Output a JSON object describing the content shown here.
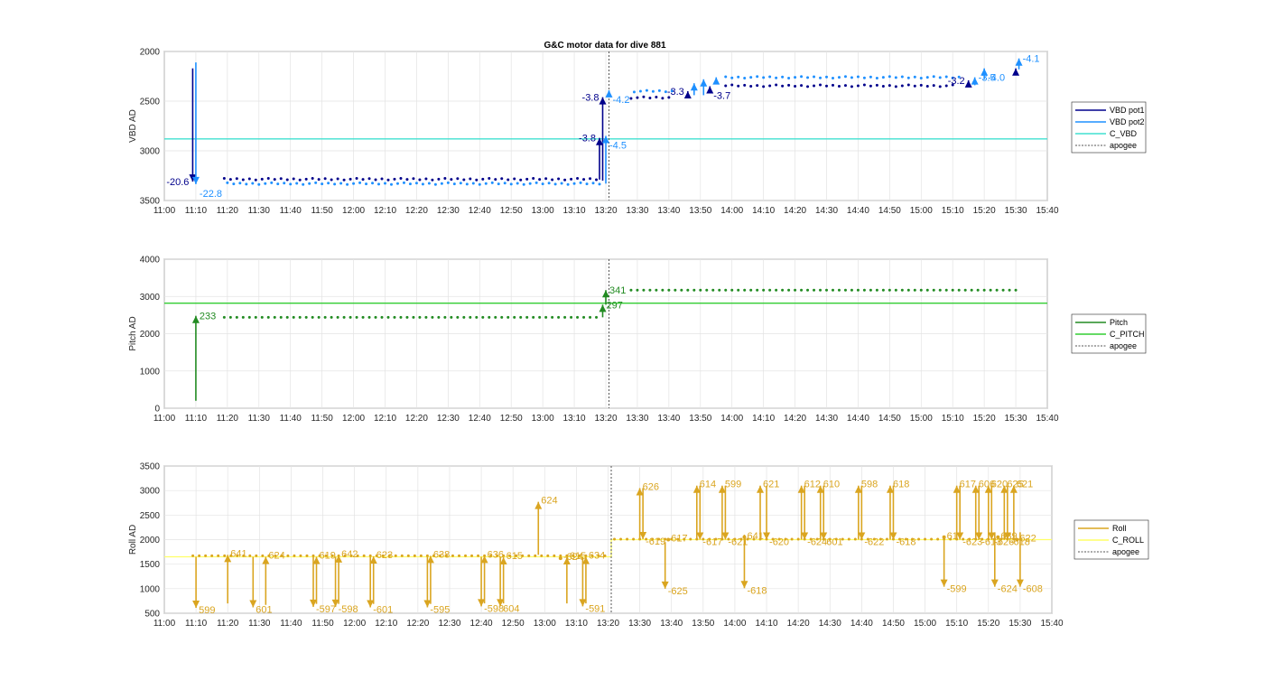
{
  "title": "G&C motor data for dive 881",
  "chart_data": [
    {
      "type": "scatter",
      "ylabel": "VBD AD",
      "xlim": [
        "11:00",
        "15:40"
      ],
      "ylim": [
        2000,
        3500
      ],
      "y_reversed": true,
      "xticks": [
        "11:00",
        "11:10",
        "11:20",
        "11:30",
        "11:40",
        "11:50",
        "12:00",
        "12:10",
        "12:20",
        "12:30",
        "12:40",
        "12:50",
        "13:00",
        "13:10",
        "13:20",
        "13:30",
        "13:40",
        "13:50",
        "14:00",
        "14:10",
        "14:20",
        "14:30",
        "14:40",
        "14:50",
        "15:00",
        "15:10",
        "15:20",
        "15:30",
        "15:40"
      ],
      "yticks": [
        "2000",
        "2500",
        "3000",
        "3500"
      ],
      "grid": true,
      "legend": {
        "placement": "right",
        "entries": [
          "VBD pot1",
          "VBD pot2",
          "C_VBD",
          "apogee"
        ]
      },
      "colors": {
        "pot1": "#00008b",
        "pot2": "#1e90ff",
        "c_line": "#40e0d0",
        "apogee": "#555555"
      },
      "c_value": 2880,
      "apogee": "13:21",
      "pot1_steady": [
        {
          "x0": "11:19",
          "x1": "13:18",
          "y": 3285
        },
        {
          "x0": "13:28",
          "x1": "13:40",
          "y": 2465
        },
        {
          "x0": "13:58",
          "x1": "15:10",
          "y": 2345
        }
      ],
      "pot2_steady": [
        {
          "x0": "11:19",
          "x1": "13:18",
          "y": 3330
        },
        {
          "x0": "13:28",
          "x1": "13:40",
          "y": 2400
        },
        {
          "x0": "13:57",
          "x1": "15:11",
          "y": 2260
        }
      ],
      "moves": [
        {
          "x": "11:09",
          "y0": 2170,
          "y1": 3310,
          "color": "#00008b",
          "label": "-20.6",
          "label_side": "left"
        },
        {
          "x": "11:10",
          "y0": 2110,
          "y1": 3335,
          "color": "#1e90ff",
          "label": "-22.8",
          "label_side": "right-below"
        },
        {
          "x": "13:18",
          "y0": 3290,
          "y1": 2870,
          "color": "#00008b",
          "label": "-3.8",
          "label_side": "left"
        },
        {
          "x": "13:19",
          "y0": 3300,
          "y1": 2460,
          "color": "#00008b",
          "label": "-3.8",
          "label_side": "left"
        },
        {
          "x": "13:20",
          "y0": 3330,
          "y1": 2850,
          "color": "#1e90ff",
          "label": "-4.5",
          "label_side": "right-below"
        },
        {
          "x": "13:21",
          "y0": 2460,
          "y1": 2390,
          "color": "#1e90ff",
          "label": "-4.2",
          "label_side": "right-below"
        },
        {
          "x": "13:46",
          "y0": 2440,
          "y1": 2400,
          "color": "#00008b",
          "label": "-3.3",
          "label_side": "left"
        },
        {
          "x": "13:48",
          "y0": 2440,
          "y1": 2320,
          "color": "#1e90ff",
          "label": "",
          "label_side": "none"
        },
        {
          "x": "13:51",
          "y0": 2440,
          "y1": 2280,
          "color": "#1e90ff",
          "label": "",
          "label_side": "none"
        },
        {
          "x": "13:53",
          "y0": 2380,
          "y1": 2350,
          "color": "#00008b",
          "label": "-3.7",
          "label_side": "right-below"
        },
        {
          "x": "13:55",
          "y0": 2330,
          "y1": 2260,
          "color": "#1e90ff",
          "label": "",
          "label_side": "none"
        },
        {
          "x": "15:15",
          "y0": 2350,
          "y1": 2290,
          "color": "#00008b",
          "label": "-3.2",
          "label_side": "left"
        },
        {
          "x": "15:17",
          "y0": 2340,
          "y1": 2260,
          "color": "#1e90ff",
          "label": "-3.5",
          "label_side": "right"
        },
        {
          "x": "15:20",
          "y0": 2280,
          "y1": 2170,
          "color": "#1e90ff",
          "label": "-4.0",
          "label_side": "right-below"
        },
        {
          "x": "15:30",
          "y0": 2230,
          "y1": 2170,
          "color": "#00008b",
          "label": "",
          "label_side": "none"
        },
        {
          "x": "15:31",
          "y0": 2180,
          "y1": 2070,
          "color": "#1e90ff",
          "label": "-4.1",
          "label_side": "right"
        }
      ]
    },
    {
      "type": "scatter",
      "ylabel": "Pitch AD",
      "xlim": [
        "11:00",
        "15:40"
      ],
      "ylim": [
        0,
        4000
      ],
      "xticks": [
        "11:00",
        "11:10",
        "11:20",
        "11:30",
        "11:40",
        "11:50",
        "12:00",
        "12:10",
        "12:20",
        "12:30",
        "12:40",
        "12:50",
        "13:00",
        "13:10",
        "13:20",
        "13:30",
        "13:40",
        "13:50",
        "14:00",
        "14:10",
        "14:20",
        "14:30",
        "14:40",
        "14:50",
        "15:00",
        "15:10",
        "15:20",
        "15:30",
        "15:40"
      ],
      "yticks": [
        "0",
        "1000",
        "2000",
        "3000",
        "4000"
      ],
      "grid": true,
      "legend": {
        "placement": "right",
        "entries": [
          "Pitch",
          "C_PITCH",
          "apogee"
        ]
      },
      "colors": {
        "pitch": "#228b22",
        "c_line": "#32cd32",
        "apogee": "#555555"
      },
      "c_value": 2820,
      "apogee": "13:21",
      "steady": [
        {
          "x0": "11:19",
          "x1": "13:18",
          "y": 2440
        },
        {
          "x0": "13:28",
          "x1": "15:31",
          "y": 3170
        }
      ],
      "moves": [
        {
          "x": "11:10",
          "y0": 200,
          "y1": 2480,
          "label": "233"
        },
        {
          "x": "13:19",
          "y0": 2440,
          "y1": 2780,
          "label": "297"
        },
        {
          "x": "13:20",
          "y0": 2780,
          "y1": 3170,
          "label": "341"
        }
      ]
    },
    {
      "type": "scatter",
      "ylabel": "Roll AD",
      "xlim": [
        "11:00",
        "15:40"
      ],
      "ylim": [
        500,
        3500
      ],
      "xticks": [
        "11:00",
        "11:10",
        "11:20",
        "11:30",
        "11:40",
        "11:50",
        "12:00",
        "12:10",
        "12:20",
        "12:30",
        "12:40",
        "12:50",
        "13:00",
        "13:10",
        "13:20",
        "13:30",
        "13:40",
        "13:50",
        "14:00",
        "14:10",
        "14:20",
        "14:30",
        "14:40",
        "14:50",
        "15:00",
        "15:10",
        "15:20",
        "15:30",
        "15:40"
      ],
      "yticks": [
        "500",
        "1000",
        "1500",
        "2000",
        "2500",
        "3000",
        "3500"
      ],
      "grid": true,
      "legend": {
        "placement": "right",
        "entries": [
          "Roll",
          "C_ROLL",
          "apogee"
        ]
      },
      "colors": {
        "roll": "#daa520",
        "c_line": "#ffff66",
        "apogee": "#555555"
      },
      "c_value_before": 1650,
      "c_value_after": 2000,
      "c_change": "13:21",
      "apogee": "13:21",
      "steady": [
        {
          "x0": "11:09",
          "x1": "13:20",
          "y": 1670
        },
        {
          "x0": "13:22",
          "x1": "15:31",
          "y": 2010
        }
      ],
      "moves": [
        {
          "x": "11:10",
          "y0": 1650,
          "y1": 610,
          "label": "599"
        },
        {
          "x": "11:28",
          "y0": 1650,
          "y1": 620,
          "label": "601"
        },
        {
          "x": "11:47",
          "y0": 1650,
          "y1": 630,
          "label": "-597"
        },
        {
          "x": "11:54",
          "y0": 1650,
          "y1": 630,
          "label": "-598"
        },
        {
          "x": "12:05",
          "y0": 1650,
          "y1": 620,
          "label": "-601"
        },
        {
          "x": "12:23",
          "y0": 1650,
          "y1": 620,
          "label": "-595"
        },
        {
          "x": "12:40",
          "y0": 1650,
          "y1": 640,
          "label": "-598"
        },
        {
          "x": "12:46",
          "y0": 1650,
          "y1": 640,
          "label": "604"
        },
        {
          "x": "13:12",
          "y0": 1650,
          "y1": 640,
          "label": "-591"
        },
        {
          "x": "13:38",
          "y0": 1950,
          "y1": 1000,
          "label": "-625"
        },
        {
          "x": "14:03",
          "y0": 2100,
          "y1": 1010,
          "label": "-618"
        },
        {
          "x": "15:06",
          "y0": 2050,
          "y1": 1040,
          "label": "-599"
        },
        {
          "x": "15:22",
          "y0": 2150,
          "y1": 1040,
          "label": "-624"
        },
        {
          "x": "15:30",
          "y0": 2150,
          "y1": 1040,
          "label": "-608"
        },
        {
          "x": "11:20",
          "y0": 700,
          "y1": 1690,
          "label": "641"
        },
        {
          "x": "11:32",
          "y0": 670,
          "y1": 1650,
          "label": "624"
        },
        {
          "x": "11:48",
          "y0": 690,
          "y1": 1650,
          "label": "619"
        },
        {
          "x": "11:55",
          "y0": 690,
          "y1": 1680,
          "label": "642"
        },
        {
          "x": "12:06",
          "y0": 690,
          "y1": 1660,
          "label": "623"
        },
        {
          "x": "12:24",
          "y0": 690,
          "y1": 1670,
          "label": "638"
        },
        {
          "x": "12:41",
          "y0": 700,
          "y1": 1670,
          "label": "636"
        },
        {
          "x": "12:47",
          "y0": 700,
          "y1": 1640,
          "label": "615"
        },
        {
          "x": "13:07",
          "y0": 700,
          "y1": 1640,
          "label": "615"
        },
        {
          "x": "13:13",
          "y0": 700,
          "y1": 1650,
          "label": "634"
        },
        {
          "x": "12:58",
          "y0": 1690,
          "y1": 2770,
          "label": "624"
        },
        {
          "x": "13:05",
          "y0": 1620,
          "y1": 1620,
          "label": "-624"
        },
        {
          "x": "13:30",
          "y0": 2000,
          "y1": 3050,
          "label": "626"
        },
        {
          "x": "13:31",
          "y0": 3050,
          "y1": 2010,
          "label": "-619"
        },
        {
          "x": "13:39",
          "y0": 2000,
          "y1": 2000,
          "label": "617"
        },
        {
          "x": "13:48",
          "y0": 2000,
          "y1": 3100,
          "label": "614"
        },
        {
          "x": "13:49",
          "y0": 3100,
          "y1": 2000,
          "label": "-617"
        },
        {
          "x": "13:56",
          "y0": 2000,
          "y1": 3100,
          "label": "599"
        },
        {
          "x": "13:57",
          "y0": 3100,
          "y1": 2000,
          "label": "-621"
        },
        {
          "x": "14:03",
          "y0": 2050,
          "y1": 2050,
          "label": "641"
        },
        {
          "x": "14:08",
          "y0": 2000,
          "y1": 3100,
          "label": "621"
        },
        {
          "x": "14:10",
          "y0": 3100,
          "y1": 2000,
          "label": "-620"
        },
        {
          "x": "14:21",
          "y0": 2000,
          "y1": 3100,
          "label": "612"
        },
        {
          "x": "14:22",
          "y0": 3100,
          "y1": 2000,
          "label": "-624"
        },
        {
          "x": "14:27",
          "y0": 2000,
          "y1": 3100,
          "label": "610"
        },
        {
          "x": "14:28",
          "y0": 3100,
          "y1": 2000,
          "label": "601"
        },
        {
          "x": "14:39",
          "y0": 2000,
          "y1": 3100,
          "label": "598"
        },
        {
          "x": "14:40",
          "y0": 3100,
          "y1": 2000,
          "label": "-622"
        },
        {
          "x": "14:49",
          "y0": 2000,
          "y1": 3100,
          "label": "618"
        },
        {
          "x": "14:50",
          "y0": 3100,
          "y1": 2000,
          "label": "-618"
        },
        {
          "x": "15:06",
          "y0": 2050,
          "y1": 2050,
          "label": "617"
        },
        {
          "x": "15:10",
          "y0": 2000,
          "y1": 3100,
          "label": "617"
        },
        {
          "x": "15:11",
          "y0": 3100,
          "y1": 2000,
          "label": "-623"
        },
        {
          "x": "15:16",
          "y0": 2000,
          "y1": 3100,
          "label": "606"
        },
        {
          "x": "15:17",
          "y0": 3100,
          "y1": 2000,
          "label": "-613"
        },
        {
          "x": "15:20",
          "y0": 2000,
          "y1": 3100,
          "label": "620"
        },
        {
          "x": "15:21",
          "y0": 3100,
          "y1": 2000,
          "label": "-626"
        },
        {
          "x": "15:23",
          "y0": 2050,
          "y1": 2050,
          "label": "639"
        },
        {
          "x": "15:25",
          "y0": 2000,
          "y1": 3100,
          "label": "625"
        },
        {
          "x": "15:26",
          "y0": 3100,
          "y1": 2000,
          "label": "-618"
        },
        {
          "x": "15:28",
          "y0": 2000,
          "y1": 3100,
          "label": "621"
        },
        {
          "x": "15:29",
          "y0": 2000,
          "y1": 2000,
          "label": "622"
        }
      ]
    }
  ]
}
